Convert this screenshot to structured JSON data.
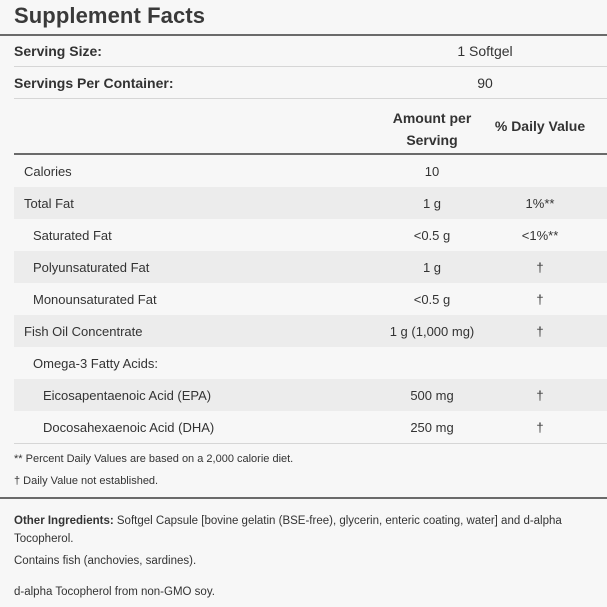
{
  "title": "Supplement Facts",
  "serving_size": {
    "label": "Serving Size:",
    "value": "1 Softgel"
  },
  "servings_per_container": {
    "label": "Servings Per Container:",
    "value": "90"
  },
  "columns": {
    "amount_line1": "Amount per",
    "amount_line2": "Serving",
    "daily_value": "% Daily Value"
  },
  "rows": [
    {
      "name": "Calories",
      "amount": "10",
      "dv": ""
    },
    {
      "name": "Total Fat",
      "amount": "1 g",
      "dv": "1%**"
    },
    {
      "name": "Saturated Fat",
      "amount": "<0.5 g",
      "dv": "<1%**"
    },
    {
      "name": "Polyunsaturated Fat",
      "amount": "1 g",
      "dv": "†"
    },
    {
      "name": "Monounsaturated Fat",
      "amount": "<0.5 g",
      "dv": "†"
    },
    {
      "name": "Fish Oil Concentrate",
      "amount": "1 g (1,000 mg)",
      "dv": "†"
    },
    {
      "name": "Omega-3 Fatty Acids:",
      "amount": "",
      "dv": ""
    },
    {
      "name": "Eicosapentaenoic Acid (EPA)",
      "amount": "500 mg",
      "dv": "†"
    },
    {
      "name": "Docosahexaenoic Acid (DHA)",
      "amount": "250 mg",
      "dv": "†"
    }
  ],
  "footnotes": {
    "percent_dv": "** Percent Daily Values are based on a 2,000 calorie diet.",
    "not_established": "† Daily Value not established."
  },
  "ingredients": {
    "label": "Other Ingredients:",
    "text": "Softgel Capsule [bovine gelatin (BSE-free), glycerin, enteric coating, water] and d-alpha Tocopherol.",
    "allergen": "Contains fish (anchovies, sardines).",
    "source": "d-alpha Tocopherol from non-GMO soy."
  },
  "colors": {
    "background": "#f7f7f7",
    "alt_row": "#ececec",
    "rule": "#8f8f8f",
    "text": "#333333"
  }
}
